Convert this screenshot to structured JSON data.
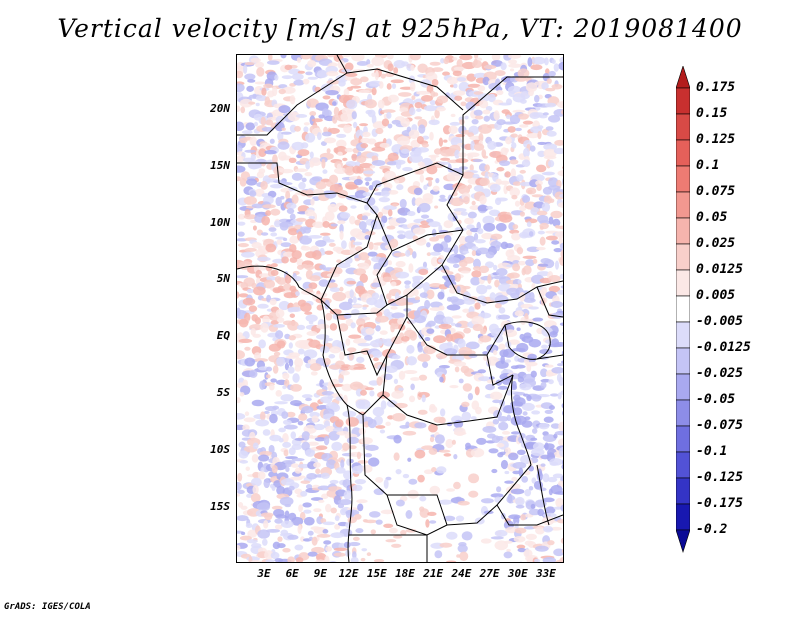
{
  "title": "Vertical velocity [m/s] at 925hPa, VT: 2019081400",
  "credit": "GrADS: IGES/COLA",
  "map": {
    "lat_ticks": [
      "20N",
      "15N",
      "10N",
      "5N",
      "EQ",
      "5S",
      "10S",
      "15S"
    ],
    "lon_ticks": [
      "3E",
      "6E",
      "9E",
      "12E",
      "15E",
      "18E",
      "21E",
      "24E",
      "27E",
      "30E",
      "33E"
    ],
    "lat_range": [
      -20,
      24.5
    ],
    "lon_range": [
      0,
      35
    ]
  },
  "colorbar": {
    "labels": [
      "0.175",
      "0.15",
      "0.125",
      "0.1",
      "0.075",
      "0.05",
      "0.025",
      "0.0125",
      "0.005",
      "-0.005",
      "-0.0125",
      "-0.025",
      "-0.05",
      "-0.075",
      "-0.1",
      "-0.125",
      "-0.175",
      "-0.2"
    ],
    "colors": [
      "#b31d1d",
      "#c8302f",
      "#d84a46",
      "#e5605a",
      "#ee7b73",
      "#f29890",
      "#f6b4ad",
      "#f8cfca",
      "#fbe8e6",
      "#ffffff",
      "#dcdcfa",
      "#c4c4f6",
      "#a9a9f0",
      "#8d8de8",
      "#6f6fe0",
      "#5252d6",
      "#3434c6",
      "#1818b0",
      "#0a0a96"
    ]
  }
}
